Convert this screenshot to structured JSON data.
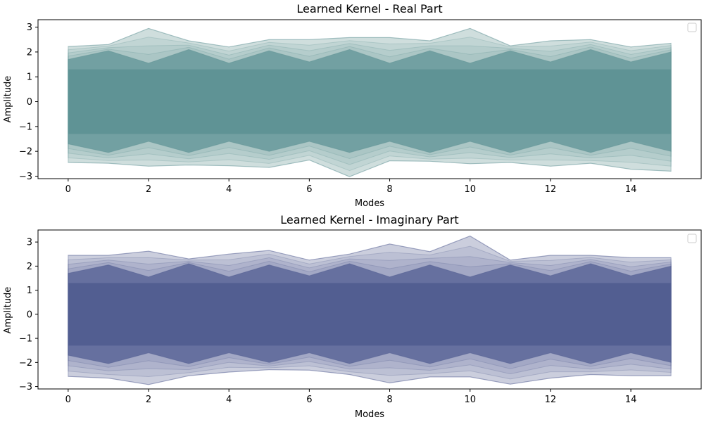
{
  "chart_data": [
    {
      "type": "area",
      "title": "Learned Kernel - Real Part",
      "xlabel": "Modes",
      "ylabel": "Amplitude",
      "xlim": [
        -0.75,
        15.75
      ],
      "ylim": [
        -3.1,
        3.3
      ],
      "x_ticks": [
        0,
        2,
        4,
        6,
        8,
        10,
        12,
        14
      ],
      "y_ticks": [
        -3,
        -2,
        -1,
        0,
        1,
        2,
        3
      ],
      "grid": false,
      "legend": "top-right",
      "color": "#5f9395",
      "light_color": "#cfdedd",
      "x": [
        0,
        1,
        2,
        3,
        4,
        5,
        6,
        7,
        8,
        9,
        10,
        11,
        12,
        13,
        14,
        15
      ],
      "upper_envelope": [
        2.22,
        2.3,
        2.95,
        2.45,
        2.2,
        2.5,
        2.5,
        2.58,
        2.58,
        2.45,
        2.95,
        2.25,
        2.45,
        2.5,
        2.2,
        2.35
      ],
      "lower_envelope": [
        -2.45,
        -2.48,
        -2.6,
        -2.55,
        -2.58,
        -2.65,
        -2.35,
        -3.02,
        -2.38,
        -2.4,
        -2.5,
        -2.45,
        -2.6,
        -2.48,
        -2.72,
        -2.8
      ],
      "dense_band_upper": [
        1.7,
        2.05,
        1.55,
        2.1,
        1.55,
        2.05,
        1.6,
        2.1,
        1.55,
        2.05,
        1.55,
        2.05,
        1.6,
        2.1,
        1.6,
        2.0
      ],
      "dense_band_lower": [
        -1.7,
        -2.05,
        -1.6,
        -2.05,
        -1.6,
        -2.0,
        -1.6,
        -2.05,
        -1.6,
        -2.05,
        -1.6,
        -2.05,
        -1.6,
        -2.05,
        -1.6,
        -2.0
      ],
      "core_band": [
        -1.3,
        1.3
      ]
    },
    {
      "type": "area",
      "title": "Learned Kernel - Imaginary Part",
      "xlabel": "Modes",
      "ylabel": "Amplitude",
      "xlim": [
        -0.75,
        15.75
      ],
      "ylim": [
        -3.1,
        3.5
      ],
      "x_ticks": [
        0,
        2,
        4,
        6,
        8,
        10,
        12,
        14
      ],
      "y_ticks": [
        -3,
        -2,
        -1,
        0,
        1,
        2,
        3
      ],
      "grid": false,
      "legend": "top-right",
      "color": "#525e91",
      "light_color": "#cbcedd",
      "x": [
        0,
        1,
        2,
        3,
        4,
        5,
        6,
        7,
        8,
        9,
        10,
        11,
        12,
        13,
        14,
        15
      ],
      "upper_envelope": [
        2.45,
        2.45,
        2.62,
        2.3,
        2.5,
        2.65,
        2.25,
        2.5,
        2.92,
        2.6,
        3.25,
        2.25,
        2.45,
        2.45,
        2.35,
        2.35
      ],
      "lower_envelope": [
        -2.58,
        -2.65,
        -2.92,
        -2.55,
        -2.4,
        -2.3,
        -2.32,
        -2.5,
        -2.85,
        -2.6,
        -2.6,
        -2.9,
        -2.65,
        -2.5,
        -2.55,
        -2.55
      ],
      "dense_band_upper": [
        1.7,
        2.05,
        1.55,
        2.1,
        1.55,
        2.05,
        1.6,
        2.1,
        1.55,
        2.05,
        1.55,
        2.05,
        1.6,
        2.1,
        1.6,
        2.0
      ],
      "dense_band_lower": [
        -1.7,
        -2.05,
        -1.6,
        -2.05,
        -1.6,
        -2.0,
        -1.6,
        -2.05,
        -1.6,
        -2.05,
        -1.6,
        -2.05,
        -1.6,
        -2.05,
        -1.6,
        -2.0
      ],
      "core_band": [
        -1.3,
        1.3
      ]
    }
  ]
}
